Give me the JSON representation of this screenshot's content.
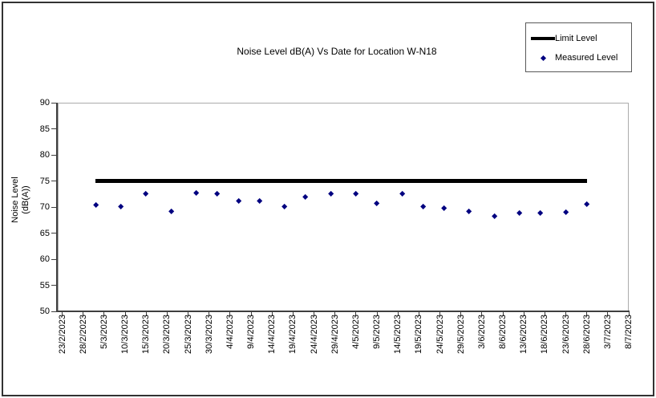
{
  "chart": {
    "title": "Noise Level dB(A) Vs Date for Location W-N18",
    "y_axis_title": [
      "Noise Level",
      "(dB(A))"
    ],
    "legend": {
      "items": [
        {
          "label": "Limit Level",
          "symbol": "thick-line",
          "color": "#000000"
        },
        {
          "label": "Measured Level",
          "symbol": "diamond",
          "color": "#000080"
        }
      ]
    },
    "colors": {
      "marker": "#000080",
      "limit_line": "#000000",
      "axis": "#3f3f3f",
      "plot_border": "#ababab",
      "outer_border": "#333333"
    }
  },
  "chart_data": {
    "type": "scatter",
    "title": "Noise Level dB(A) Vs Date for Location W-N18",
    "xlabel": "",
    "ylabel": "Noise Level (dB(A))",
    "ylim": [
      50,
      90
    ],
    "y_ticks": [
      90,
      85,
      80,
      75,
      70,
      65,
      60,
      55,
      50
    ],
    "x_tick_labels": [
      "23/2/2023",
      "28/2/2023",
      "5/3/2023",
      "10/3/2023",
      "15/3/2023",
      "20/3/2023",
      "25/3/2023",
      "30/3/2023",
      "4/4/2023",
      "9/4/2023",
      "14/4/2023",
      "19/4/2023",
      "24/4/2023",
      "29/4/2023",
      "4/5/2023",
      "9/5/2023",
      "14/5/2023",
      "19/5/2023",
      "24/5/2023",
      "29/5/2023",
      "3/6/2023",
      "8/6/2023",
      "13/6/2023",
      "18/6/2023",
      "23/6/2023",
      "28/6/2023",
      "3/7/2023",
      "8/7/2023"
    ],
    "x_tick_interval_days": 5,
    "x_range_days": [
      0,
      135
    ],
    "grid": false,
    "legend_position": "top-right",
    "series": [
      {
        "name": "Limit Level",
        "type": "line",
        "color": "#000000",
        "y": 75,
        "x_span_days": [
          8,
          125
        ]
      },
      {
        "name": "Measured Level",
        "type": "scatter",
        "marker": "diamond",
        "color": "#000080",
        "points": [
          {
            "days_from_start": 8,
            "approx_date": "3/3/2023",
            "value": 70.3
          },
          {
            "days_from_start": 14,
            "approx_date": "9/3/2023",
            "value": 70.0
          },
          {
            "days_from_start": 20,
            "approx_date": "15/3/2023",
            "value": 72.5
          },
          {
            "days_from_start": 26,
            "approx_date": "21/3/2023",
            "value": 69.2
          },
          {
            "days_from_start": 32,
            "approx_date": "27/3/2023",
            "value": 72.6
          },
          {
            "days_from_start": 37,
            "approx_date": "1/4/2023",
            "value": 72.5
          },
          {
            "days_from_start": 42,
            "approx_date": "6/4/2023",
            "value": 71.1
          },
          {
            "days_from_start": 47,
            "approx_date": "11/4/2023",
            "value": 71.2
          },
          {
            "days_from_start": 53,
            "approx_date": "17/4/2023",
            "value": 70.0
          },
          {
            "days_from_start": 58,
            "approx_date": "22/4/2023",
            "value": 71.9
          },
          {
            "days_from_start": 64,
            "approx_date": "28/4/2023",
            "value": 72.5
          },
          {
            "days_from_start": 70,
            "approx_date": "4/5/2023",
            "value": 72.5
          },
          {
            "days_from_start": 75,
            "approx_date": "9/5/2023",
            "value": 70.7
          },
          {
            "days_from_start": 81,
            "approx_date": "15/5/2023",
            "value": 72.5
          },
          {
            "days_from_start": 86,
            "approx_date": "20/5/2023",
            "value": 70.0
          },
          {
            "days_from_start": 91,
            "approx_date": "25/5/2023",
            "value": 69.8
          },
          {
            "days_from_start": 97,
            "approx_date": "31/5/2023",
            "value": 69.2
          },
          {
            "days_from_start": 103,
            "approx_date": "6/6/2023",
            "value": 68.2
          },
          {
            "days_from_start": 109,
            "approx_date": "12/6/2023",
            "value": 68.8
          },
          {
            "days_from_start": 114,
            "approx_date": "17/6/2023",
            "value": 68.8
          },
          {
            "days_from_start": 120,
            "approx_date": "23/6/2023",
            "value": 69.0
          },
          {
            "days_from_start": 125,
            "approx_date": "28/6/2023",
            "value": 70.5
          }
        ]
      }
    ]
  }
}
